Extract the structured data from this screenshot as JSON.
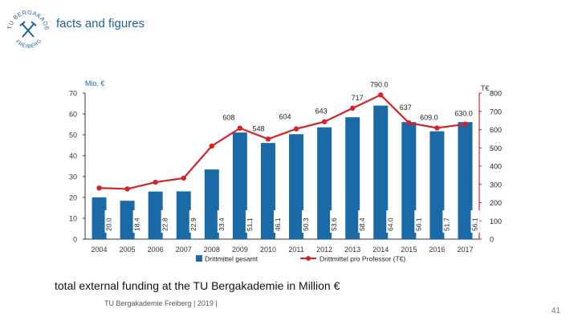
{
  "header": {
    "title": "facts and figures",
    "logo_text_top": "TU BERGAKADEMIE",
    "logo_text_bottom": "FREIBERG"
  },
  "chart_data": {
    "type": "bar",
    "categories": [
      "2004",
      "2005",
      "2006",
      "2007",
      "2008",
      "2009",
      "2010",
      "2011",
      "2012",
      "2013",
      "2014",
      "2015",
      "2016",
      "2017"
    ],
    "series": [
      {
        "name": "Drittmittel gesamt",
        "axis": "left",
        "values": [
          20.0,
          18.4,
          22.8,
          22.9,
          33.4,
          51.1,
          46.1,
          50.3,
          53.6,
          58.4,
          64.0,
          56.1,
          51.7,
          56.1
        ],
        "labels": [
          "20.0",
          "18.4",
          "22.8",
          "22.9",
          "33.4",
          "51.1",
          "46.1",
          "50.3",
          "53.6",
          "58.4",
          "64.0",
          "56.1",
          "51.7",
          "56.1"
        ]
      },
      {
        "name": "Drittmittel pro Professor (T€)",
        "axis": "right",
        "values": [
          280,
          275,
          312,
          334,
          510,
          608,
          548,
          604,
          643,
          717,
          790,
          637,
          609,
          630
        ],
        "labels": [
          "",
          "",
          "",
          "",
          "",
          "608",
          "548",
          "604",
          "643",
          "717",
          "790.0",
          "637",
          "609.0",
          "630.0"
        ]
      }
    ],
    "left_axis": {
      "label": "Mio. €",
      "range": [
        0,
        70
      ],
      "ticks": [
        "0",
        "10",
        "20",
        "30",
        "40",
        "50",
        "60",
        "70"
      ]
    },
    "right_axis": {
      "label": "T€",
      "range": [
        0,
        800
      ],
      "ticks": [
        "0",
        "100",
        "200",
        "300",
        "400",
        "500",
        "600",
        "700",
        "800"
      ]
    },
    "colors": {
      "bar": "#1a6aa8",
      "line": "#d0252a",
      "axis_left": "#1a6aa8",
      "axis_right": "#d0252a"
    },
    "legend_position": "bottom"
  },
  "caption": "total external funding at the TU Bergakademie in Million €",
  "footer": "TU Bergakademie Freiberg | 2019 |",
  "page_number": "41"
}
